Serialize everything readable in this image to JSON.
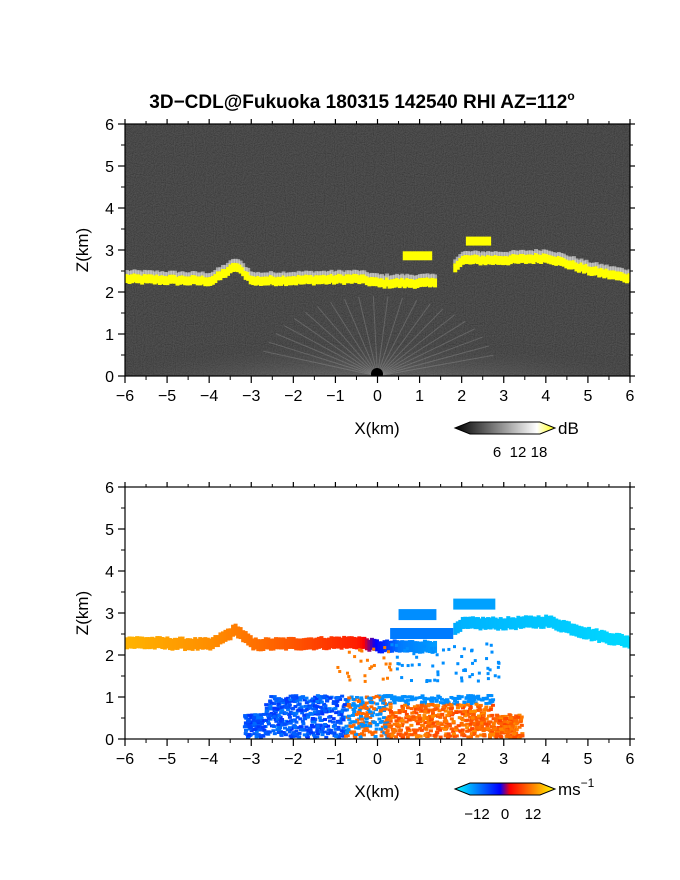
{
  "chart_data": [
    {
      "type": "heatmap",
      "title": "3D−CDL@Fukuoka 180315 142540 RHI AZ=112",
      "title_superscript": "o",
      "xlabel": "X(km)",
      "ylabel": "Z(km)",
      "xlim": [
        -6,
        6
      ],
      "ylim": [
        0,
        6
      ],
      "xticks": [
        "−6",
        "−5",
        "−4",
        "−3",
        "−2",
        "−1",
        "0",
        "1",
        "2",
        "3",
        "4",
        "5",
        "6"
      ],
      "yticks": [
        "0",
        "1",
        "2",
        "3",
        "4",
        "5",
        "6"
      ],
      "colorbar": {
        "unit": "dB",
        "ticks": [
          "6",
          "12",
          "18"
        ],
        "range": [
          0,
          20
        ],
        "colors": [
          "#000000",
          "#ffffff",
          "#ffff00"
        ]
      },
      "features": {
        "cloud_layer_z": [
          [
            -6,
            2.3
          ],
          [
            -4,
            2.25
          ],
          [
            -3.4,
            2.6
          ],
          [
            -3,
            2.25
          ],
          [
            -0.5,
            2.3
          ],
          [
            0,
            2.2
          ],
          [
            1.3,
            2.2
          ],
          [
            2,
            2.75
          ],
          [
            3,
            2.75
          ],
          [
            4,
            2.8
          ],
          [
            5,
            2.5
          ],
          [
            6,
            2.3
          ]
        ],
        "near_ground_echo_top_km": 1.0
      }
    },
    {
      "type": "heatmap",
      "title": "",
      "xlabel": "X(km)",
      "ylabel": "Z(km)",
      "xlim": [
        -6,
        6
      ],
      "ylim": [
        0,
        6
      ],
      "xticks": [
        "−6",
        "−5",
        "−4",
        "−3",
        "−2",
        "−1",
        "0",
        "1",
        "2",
        "3",
        "4",
        "5",
        "6"
      ],
      "yticks": [
        "0",
        "1",
        "2",
        "3",
        "4",
        "5",
        "6"
      ],
      "colorbar": {
        "unit": "ms",
        "unit_superscript": "−1",
        "ticks": [
          "−12",
          "0",
          "12"
        ],
        "range": [
          -15,
          15
        ],
        "colors": [
          "#00ffff",
          "#0000ff",
          "#ff0000",
          "#ffff00"
        ]
      },
      "features": {
        "layer_velocity_ms": [
          [
            -6,
            11
          ],
          [
            -4,
            9
          ],
          [
            -2,
            6
          ],
          [
            -0.5,
            3
          ],
          [
            0.5,
            -8
          ],
          [
            2,
            -11
          ],
          [
            4,
            -12
          ],
          [
            6,
            -13
          ]
        ],
        "near_ground_band_km": [
          -3.2,
          3.4
        ]
      }
    }
  ]
}
